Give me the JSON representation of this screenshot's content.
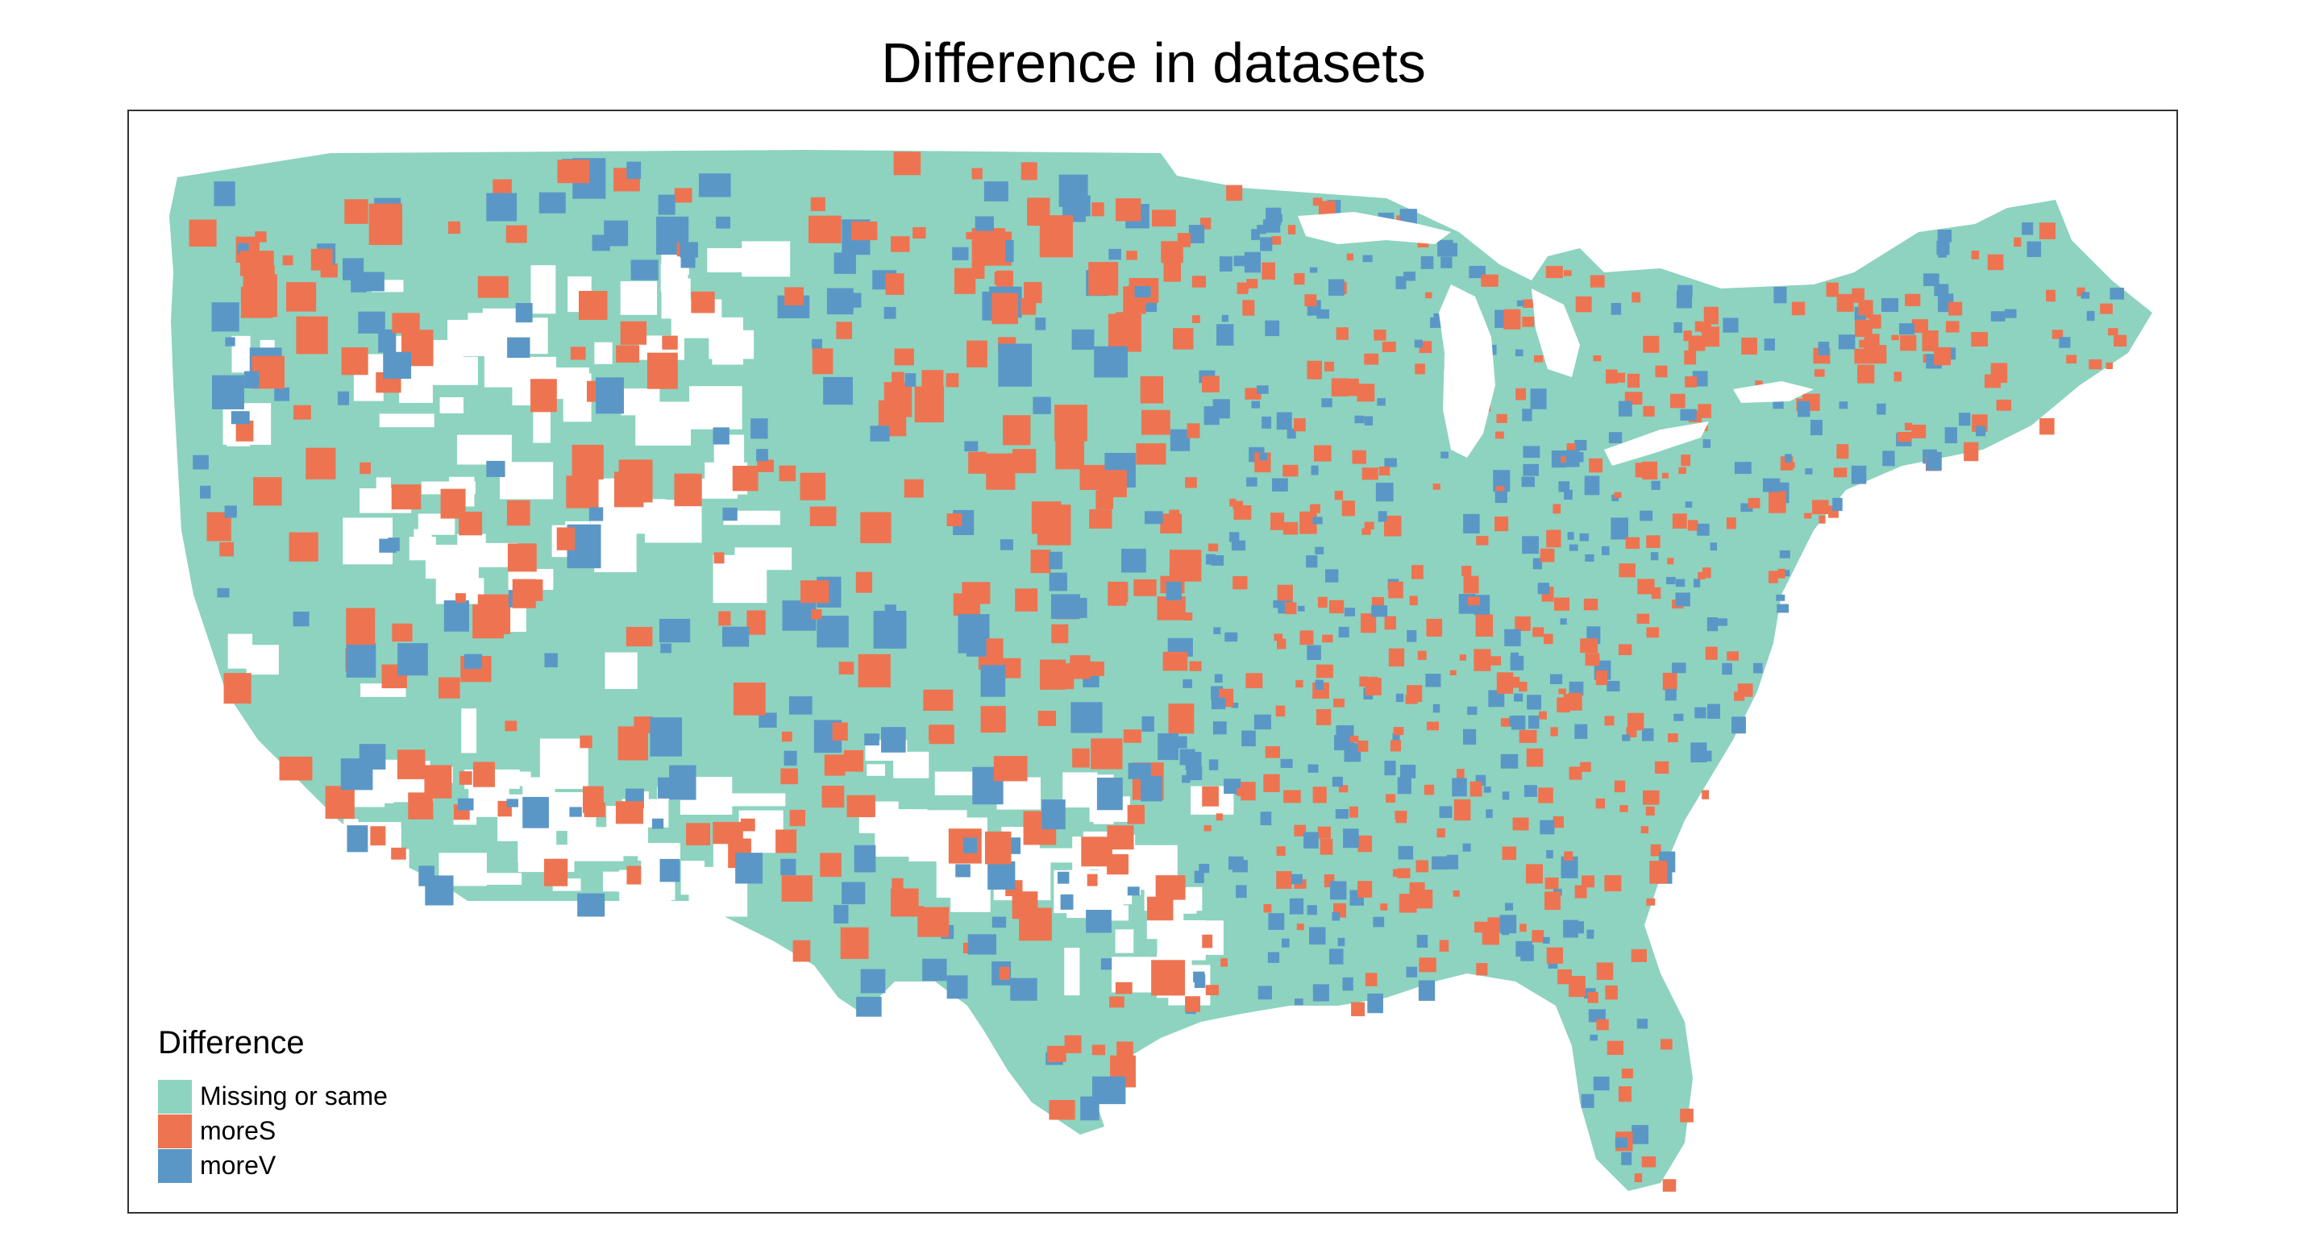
{
  "title": "Difference in datasets",
  "legend": {
    "title": "Difference",
    "items": [
      {
        "label": "Missing or same",
        "color": "#8dd3c0"
      },
      {
        "label": "moreS",
        "color": "#ee7451"
      },
      {
        "label": "moreV",
        "color": "#5b97c6"
      }
    ]
  },
  "map": {
    "region": "contiguous-united-states",
    "background_color": "#ffffff",
    "base_color": "#8dd3c0",
    "border_color": "#333333"
  }
}
